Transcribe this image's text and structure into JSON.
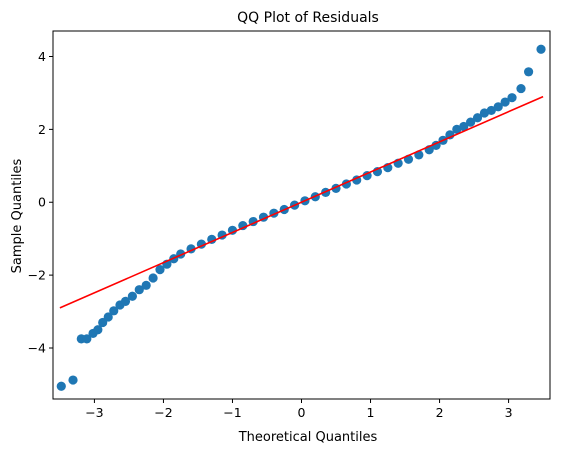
{
  "chart_data": {
    "type": "scatter",
    "title": "QQ Plot of Residuals",
    "xlabel": "Theoretical Quantiles",
    "ylabel": "Sample Quantiles",
    "xlim": [
      -3.6,
      3.6
    ],
    "ylim": [
      -5.4,
      4.7
    ],
    "x_ticks": [
      -3,
      -2,
      -1,
      0,
      1,
      2,
      3
    ],
    "x_tick_labels": [
      "−3",
      "−2",
      "−1",
      "0",
      "1",
      "2",
      "3"
    ],
    "y_ticks": [
      -4,
      -2,
      0,
      2,
      4
    ],
    "y_tick_labels": [
      "−4",
      "−2",
      "0",
      "2",
      "4"
    ],
    "grid": false,
    "series": [
      {
        "type": "scatter",
        "color": "#1f77b4",
        "points": [
          [
            -3.48,
            -5.05
          ],
          [
            -3.31,
            -4.88
          ],
          [
            -3.19,
            -3.75
          ],
          [
            -3.11,
            -3.75
          ],
          [
            -3.02,
            -3.6
          ],
          [
            -2.95,
            -3.5
          ],
          [
            -2.88,
            -3.3
          ],
          [
            -2.8,
            -3.15
          ],
          [
            -2.72,
            -2.98
          ],
          [
            -2.63,
            -2.82
          ],
          [
            -2.55,
            -2.72
          ],
          [
            -2.45,
            -2.58
          ],
          [
            -2.35,
            -2.4
          ],
          [
            -2.25,
            -2.28
          ],
          [
            -2.15,
            -2.08
          ],
          [
            -2.05,
            -1.85
          ],
          [
            -1.95,
            -1.7
          ],
          [
            -1.85,
            -1.55
          ],
          [
            -1.75,
            -1.42
          ],
          [
            -1.6,
            -1.28
          ],
          [
            -1.45,
            -1.15
          ],
          [
            -1.3,
            -1.02
          ],
          [
            -1.15,
            -0.9
          ],
          [
            -1.0,
            -0.77
          ],
          [
            -0.85,
            -0.64
          ],
          [
            -0.7,
            -0.53
          ],
          [
            -0.55,
            -0.41
          ],
          [
            -0.4,
            -0.3
          ],
          [
            -0.25,
            -0.2
          ],
          [
            -0.1,
            -0.08
          ],
          [
            0.05,
            0.04
          ],
          [
            0.2,
            0.15
          ],
          [
            0.35,
            0.27
          ],
          [
            0.5,
            0.38
          ],
          [
            0.65,
            0.5
          ],
          [
            0.8,
            0.61
          ],
          [
            0.95,
            0.73
          ],
          [
            1.1,
            0.84
          ],
          [
            1.25,
            0.95
          ],
          [
            1.4,
            1.07
          ],
          [
            1.55,
            1.18
          ],
          [
            1.7,
            1.3
          ],
          [
            1.85,
            1.44
          ],
          [
            1.95,
            1.56
          ],
          [
            2.05,
            1.7
          ],
          [
            2.15,
            1.85
          ],
          [
            2.25,
            2.0
          ],
          [
            2.35,
            2.08
          ],
          [
            2.45,
            2.2
          ],
          [
            2.55,
            2.32
          ],
          [
            2.65,
            2.45
          ],
          [
            2.75,
            2.52
          ],
          [
            2.85,
            2.62
          ],
          [
            2.95,
            2.75
          ],
          [
            3.05,
            2.87
          ],
          [
            3.18,
            3.12
          ],
          [
            3.29,
            3.58
          ],
          [
            3.47,
            4.2
          ]
        ]
      },
      {
        "type": "line",
        "color": "#ff0000",
        "points": [
          [
            -3.5,
            -2.9
          ],
          [
            3.5,
            2.9
          ]
        ]
      }
    ]
  }
}
